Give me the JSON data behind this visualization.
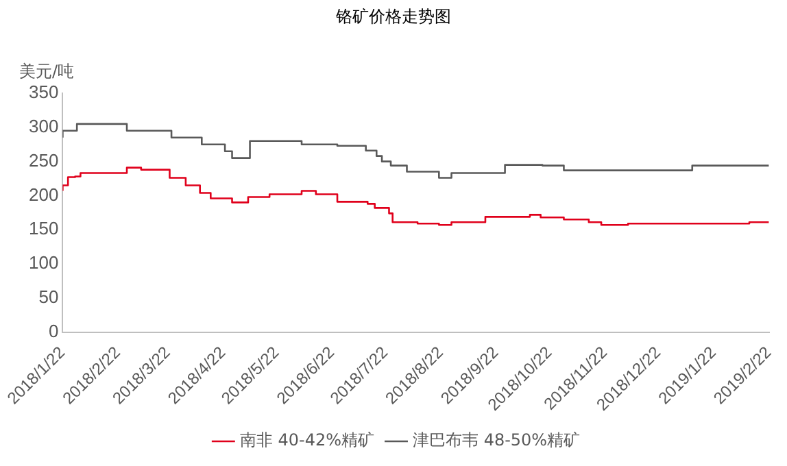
{
  "chart_data": {
    "type": "step",
    "title": "铬矿价格走势图",
    "ylabel": "美元/吨",
    "legend": "bottom",
    "grid": false,
    "xlim": [
      "2018-01-22",
      "2019-02-22"
    ],
    "xticks": [
      {
        "value": "2018-01-22",
        "label": "2018/1/22"
      },
      {
        "value": "2018-02-22",
        "label": "2018/2/22"
      },
      {
        "value": "2018-03-22",
        "label": "2018/3/22"
      },
      {
        "value": "2018-04-22",
        "label": "2018/4/22"
      },
      {
        "value": "2018-05-22",
        "label": "2018/5/22"
      },
      {
        "value": "2018-06-22",
        "label": "2018/6/22"
      },
      {
        "value": "2018-07-22",
        "label": "2018/7/22"
      },
      {
        "value": "2018-08-22",
        "label": "2018/8/22"
      },
      {
        "value": "2018-09-22",
        "label": "2018/9/22"
      },
      {
        "value": "2018-10-22",
        "label": "2018/10/22"
      },
      {
        "value": "2018-11-22",
        "label": "2018/11/22"
      },
      {
        "value": "2018-12-22",
        "label": "2018/12/22"
      },
      {
        "value": "2019-01-22",
        "label": "2019/1/22"
      },
      {
        "value": "2019-02-22",
        "label": "2019/2/22"
      }
    ],
    "ylim": [
      0,
      350
    ],
    "yticks": [
      0,
      50,
      100,
      150,
      200,
      250,
      300,
      350
    ],
    "series": [
      {
        "name": "南非 40-42%精矿",
        "color": "#e0001b",
        "x": [
          "2018-01-22",
          "2018-01-25",
          "2018-01-29",
          "2018-02-01",
          "2018-02-27",
          "2018-03-07",
          "2018-03-23",
          "2018-04-01",
          "2018-04-09",
          "2018-04-15",
          "2018-04-27",
          "2018-05-06",
          "2018-05-18",
          "2018-06-05",
          "2018-06-13",
          "2018-06-25",
          "2018-07-12",
          "2018-07-16",
          "2018-07-24",
          "2018-07-26",
          "2018-08-09",
          "2018-08-21",
          "2018-08-28",
          "2018-09-16",
          "2018-10-11",
          "2018-10-17",
          "2018-10-30",
          "2018-11-13",
          "2018-11-20",
          "2018-12-05",
          "2019-02-11",
          "2019-02-20",
          "2019-02-22"
        ],
        "values": [
          207,
          215,
          227,
          228,
          233,
          241,
          238,
          226,
          215,
          204,
          196,
          190,
          198,
          202,
          207,
          202,
          191,
          188,
          182,
          174,
          161,
          159,
          157,
          161,
          169,
          172,
          168,
          165,
          161,
          157,
          159,
          161,
          161
        ]
      },
      {
        "name": "津巴布韦 48-50%精矿",
        "color": "#595959",
        "x": [
          "2018-01-22",
          "2018-01-30",
          "2018-02-27",
          "2018-03-24",
          "2018-04-10",
          "2018-04-23",
          "2018-04-27",
          "2018-05-07",
          "2018-06-05",
          "2018-06-25",
          "2018-07-11",
          "2018-07-17",
          "2018-07-20",
          "2018-07-25",
          "2018-08-03",
          "2018-08-21",
          "2018-08-28",
          "2018-09-27",
          "2018-10-18",
          "2018-10-30",
          "2019-01-10",
          "2019-02-18",
          "2019-02-22"
        ],
        "values": [
          285,
          295,
          305,
          295,
          285,
          275,
          265,
          255,
          280,
          275,
          273,
          266,
          258,
          250,
          244,
          235,
          226,
          233,
          245,
          244,
          237,
          244,
          244
        ]
      }
    ]
  }
}
